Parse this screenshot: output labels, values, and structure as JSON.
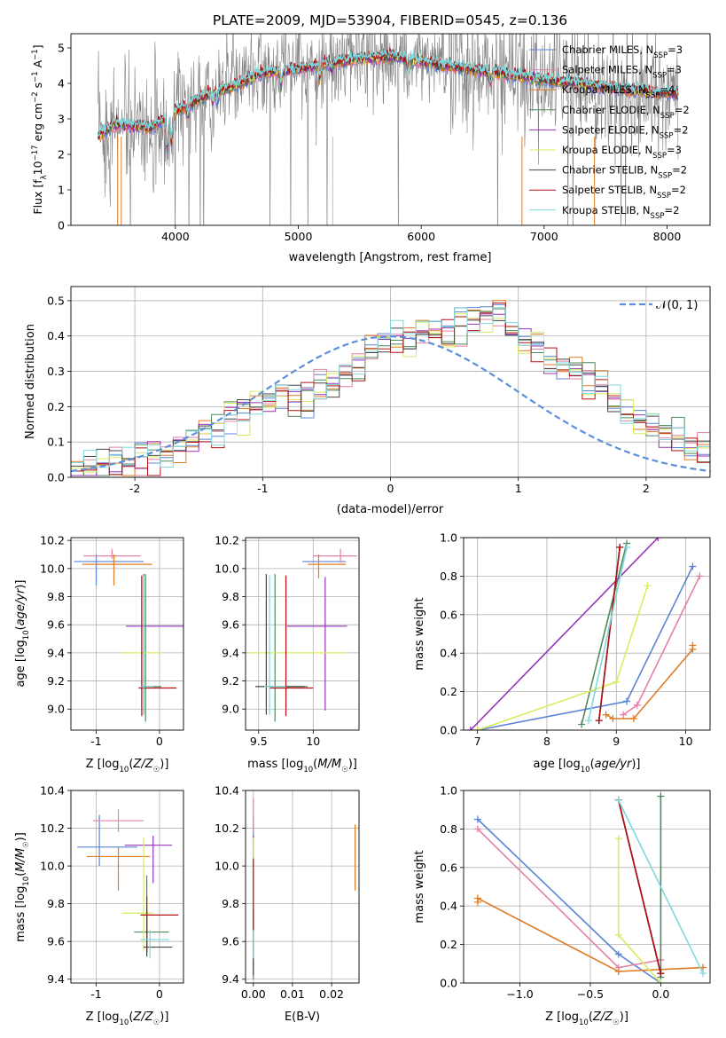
{
  "figure_title": "PLATE=2009, MJD=53904, FIBERID=0545, z=0.136",
  "colors": {
    "Chabrier MILES": "#5b84d6",
    "Salpeter MILES": "#e580a8",
    "Kroupa MILES": "#e07b22",
    "Chabrier ELODIE": "#4f8a5a",
    "Salpeter ELODIE": "#9932b8",
    "Kroupa ELODIE": "#d7ec5e",
    "Chabrier STELIB": "#454545",
    "Salpeter STELIB": "#b21212",
    "Kroupa STELIB": "#7fd8dd",
    "data": "#808080",
    "grid": "#b0b0b0",
    "normal": "#5b8fd9"
  },
  "chart_data": [
    {
      "id": "spectrum",
      "type": "line",
      "xlabel": "wavelength [Angstrom, rest frame]",
      "ylabel": "Flux [f_λ 10^-17 erg cm^-2 s^-1 A^-1]",
      "xlim": [
        3150,
        8350
      ],
      "ylim": [
        0,
        5.4
      ],
      "xticks": [
        4000,
        5000,
        6000,
        7000,
        8000
      ],
      "yticks": [
        0,
        1,
        2,
        3,
        4,
        5
      ],
      "grid": false,
      "legend_position": "top-right",
      "continuum_knots": {
        "x": [
          3370,
          3500,
          3650,
          3800,
          3950,
          4100,
          4300,
          4500,
          4700,
          5000,
          5200,
          5500,
          5800,
          6100,
          6400,
          6700,
          7000,
          7300,
          7600,
          7900,
          8090
        ],
        "y": [
          2.5,
          2.85,
          2.8,
          2.75,
          3.1,
          3.4,
          3.75,
          3.95,
          4.3,
          4.4,
          4.55,
          4.7,
          4.75,
          4.55,
          4.4,
          4.25,
          4.1,
          4.0,
          3.85,
          3.75,
          3.7
        ]
      },
      "series": [
        {
          "name": "Chabrier MILES",
          "nssp": "3"
        },
        {
          "name": "Salpeter MILES",
          "nssp": "3"
        },
        {
          "name": "Kroupa MILES",
          "nssp": "4"
        },
        {
          "name": "Chabrier ELODIE",
          "nssp": "2"
        },
        {
          "name": "Salpeter ELODIE",
          "nssp": "2"
        },
        {
          "name": "Kroupa ELODIE",
          "nssp": "3"
        },
        {
          "name": "Chabrier STELIB",
          "nssp": "2"
        },
        {
          "name": "Salpeter STELIB",
          "nssp": "2"
        },
        {
          "name": "Kroupa STELIB",
          "nssp": "2"
        }
      ]
    },
    {
      "id": "residuals",
      "type": "histogram",
      "xlabel": "(data-model)/error",
      "ylabel": "Normed distribution",
      "xlim": [
        -2.5,
        2.5
      ],
      "ylim": [
        0,
        0.54
      ],
      "xticks": [
        -2,
        -1,
        0,
        1,
        2
      ],
      "yticks": [
        0.0,
        0.1,
        0.2,
        0.3,
        0.4,
        0.5
      ],
      "grid": true,
      "legend": "𝒩(0, 1)",
      "legend_position": "top-right",
      "bin_width": 0.1,
      "template_density": [
        0.02,
        0.025,
        0.03,
        0.04,
        0.05,
        0.06,
        0.065,
        0.07,
        0.085,
        0.1,
        0.12,
        0.14,
        0.17,
        0.185,
        0.2,
        0.21,
        0.24,
        0.22,
        0.23,
        0.25,
        0.27,
        0.3,
        0.32,
        0.36,
        0.37,
        0.38,
        0.4,
        0.42,
        0.43,
        0.41,
        0.44,
        0.46,
        0.47,
        0.45,
        0.42,
        0.38,
        0.36,
        0.33,
        0.32,
        0.29,
        0.27,
        0.25,
        0.22,
        0.19,
        0.16,
        0.14,
        0.12,
        0.1,
        0.085,
        0.075
      ]
    },
    {
      "id": "age-vs-Z",
      "type": "errorbar",
      "xlabel": "Z [log10(Z/Z☉)]",
      "ylabel": "age  [log10(age/yr)]",
      "xlim": [
        -1.4,
        0.38
      ],
      "ylim": [
        8.85,
        10.22
      ],
      "xticks": [
        -1,
        0
      ],
      "yticks": [
        9.0,
        9.2,
        9.4,
        9.6,
        9.8,
        10.0,
        10.2
      ],
      "grid": true,
      "points": [
        {
          "series": "Chabrier MILES",
          "x": -1.0,
          "xerr": [
            0.35,
            0.75
          ],
          "y": 10.05,
          "yerr": [
            0.17,
            0.05
          ]
        },
        {
          "series": "Salpeter MILES",
          "x": -0.75,
          "xerr": [
            0.45,
            0.45
          ],
          "y": 10.09,
          "yerr": [
            0.02,
            0.05
          ]
        },
        {
          "series": "Kroupa MILES",
          "x": -0.72,
          "xerr": [
            0.5,
            0.6
          ],
          "y": 10.03,
          "yerr": [
            0.15,
            0.07
          ]
        },
        {
          "series": "Chabrier ELODIE",
          "x": -0.22,
          "xerr": [
            0.08,
            0.25
          ],
          "y": 9.16,
          "yerr": [
            0.25,
            0.8
          ]
        },
        {
          "series": "Salpeter ELODIE",
          "x": -0.28,
          "xerr": [
            0.25,
            0.7
          ],
          "y": 9.59,
          "yerr": [
            0.6,
            0.35
          ]
        },
        {
          "series": "Kroupa ELODIE",
          "x": -0.28,
          "xerr": [
            0.3,
            0.3
          ],
          "y": 9.4,
          "yerr": [
            0.45,
            0.55
          ]
        },
        {
          "series": "Chabrier STELIB",
          "x": -0.25,
          "xerr": [
            0.05,
            0.1
          ],
          "y": 9.16,
          "yerr": [
            0.2,
            0.8
          ]
        },
        {
          "series": "Salpeter STELIB",
          "x": -0.28,
          "xerr": [
            0.05,
            0.55
          ],
          "y": 9.15,
          "yerr": [
            0.2,
            0.8
          ]
        },
        {
          "series": "Kroupa STELIB",
          "x": -0.25,
          "xerr": [
            0.05,
            0.15
          ],
          "y": 9.16,
          "yerr": [
            0.2,
            0.79
          ]
        }
      ]
    },
    {
      "id": "age-vs-mass",
      "type": "errorbar",
      "xlabel": "mass [log10(M/M☉)]",
      "ylabel": "",
      "xlim": [
        9.38,
        10.42
      ],
      "ylim": [
        8.85,
        10.22
      ],
      "xticks": [
        9.5,
        10.0
      ],
      "yticks": [
        9.0,
        9.2,
        9.4,
        9.6,
        9.8,
        10.0,
        10.2
      ],
      "grid": true,
      "points": [
        {
          "series": "Chabrier MILES",
          "x": 10.15,
          "xerr": [
            0.25,
            0.15
          ],
          "y": 10.05,
          "yerr": [
            0.0,
            0.0
          ]
        },
        {
          "series": "Salpeter MILES",
          "x": 10.25,
          "xerr": [
            0.25,
            0.15
          ],
          "y": 10.09,
          "yerr": [
            0.05,
            0.05
          ]
        },
        {
          "series": "Kroupa MILES",
          "x": 10.05,
          "xerr": [
            0.1,
            0.25
          ],
          "y": 10.03,
          "yerr": [
            0.1,
            0.07
          ]
        },
        {
          "series": "Chabrier ELODIE",
          "x": 9.65,
          "xerr": [
            0.1,
            0.3
          ],
          "y": 9.16,
          "yerr": [
            0.25,
            0.8
          ]
        },
        {
          "series": "Salpeter ELODIE",
          "x": 10.11,
          "xerr": [
            0.35,
            0.2
          ],
          "y": 9.59,
          "yerr": [
            0.6,
            0.35
          ]
        },
        {
          "series": "Kroupa ELODIE",
          "x": 9.75,
          "xerr": [
            0.35,
            0.55
          ],
          "y": 9.4,
          "yerr": [
            0.45,
            0.55
          ]
        },
        {
          "series": "Chabrier STELIB",
          "x": 9.57,
          "xerr": [
            0.1,
            0.35
          ],
          "y": 9.16,
          "yerr": [
            0.2,
            0.8
          ]
        },
        {
          "series": "Salpeter STELIB",
          "x": 9.75,
          "xerr": [
            0.15,
            0.25
          ],
          "y": 9.15,
          "yerr": [
            0.2,
            0.8
          ]
        },
        {
          "series": "Kroupa STELIB",
          "x": 9.6,
          "xerr": [
            0.05,
            0.15
          ],
          "y": 9.16,
          "yerr": [
            0.2,
            0.79
          ]
        }
      ]
    },
    {
      "id": "weight-vs-age",
      "type": "line",
      "xlabel": "age  [log10(age/yr)]",
      "ylabel": "mass weight",
      "xlim": [
        6.8,
        10.35
      ],
      "ylim": [
        0,
        1.0
      ],
      "xticks": [
        7,
        8,
        9,
        10
      ],
      "yticks": [
        0.0,
        0.2,
        0.4,
        0.6,
        0.8,
        1.0
      ],
      "grid": true,
      "series": [
        {
          "name": "Chabrier MILES",
          "x": [
            7.0,
            9.15,
            10.1
          ],
          "y": [
            0.0,
            0.15,
            0.85
          ]
        },
        {
          "name": "Salpeter MILES",
          "x": [
            9.1,
            9.3,
            10.2
          ],
          "y": [
            0.08,
            0.13,
            0.8
          ]
        },
        {
          "name": "Kroupa MILES",
          "x": [
            8.85,
            8.95,
            9.25,
            10.1,
            10.1
          ],
          "y": [
            0.08,
            0.06,
            0.06,
            0.42,
            0.44
          ]
        },
        {
          "name": "Chabrier ELODIE",
          "x": [
            8.5,
            9.15
          ],
          "y": [
            0.03,
            0.97
          ]
        },
        {
          "name": "Salpeter ELODIE",
          "x": [
            6.9,
            9.6
          ],
          "y": [
            0.0,
            1.0
          ]
        },
        {
          "name": "Kroupa ELODIE",
          "x": [
            7.0,
            9.0,
            9.45
          ],
          "y": [
            0.0,
            0.25,
            0.75
          ]
        },
        {
          "name": "Chabrier STELIB",
          "x": [
            8.75,
            9.05
          ],
          "y": [
            0.05,
            0.95
          ]
        },
        {
          "name": "Salpeter STELIB",
          "x": [
            8.75,
            9.05
          ],
          "y": [
            0.05,
            0.95
          ]
        },
        {
          "name": "Kroupa STELIB",
          "x": [
            8.6,
            9.15
          ],
          "y": [
            0.05,
            0.95
          ]
        }
      ]
    },
    {
      "id": "mass-vs-Z",
      "type": "errorbar",
      "xlabel": "Z [log10(Z/Z☉)]",
      "ylabel": "mass [log10(M/M☉)]",
      "xlim": [
        -1.4,
        0.38
      ],
      "ylim": [
        9.38,
        10.4
      ],
      "xticks": [
        -1,
        0
      ],
      "yticks": [
        9.4,
        9.6,
        9.8,
        10.0,
        10.2,
        10.4
      ],
      "grid": true,
      "points": [
        {
          "series": "Chabrier MILES",
          "x": -0.95,
          "xerr": [
            0.35,
            0.6
          ],
          "y": 10.1,
          "yerr": [
            0.1,
            0.17
          ]
        },
        {
          "series": "Salpeter MILES",
          "x": -0.65,
          "xerr": [
            0.4,
            0.4
          ],
          "y": 10.24,
          "yerr": [
            0.06,
            0.06
          ]
        },
        {
          "series": "Kroupa MILES",
          "x": -0.65,
          "xerr": [
            0.5,
            0.5
          ],
          "y": 10.05,
          "yerr": [
            0.18,
            0.05
          ]
        },
        {
          "series": "Chabrier ELODIE",
          "x": -0.2,
          "xerr": [
            0.2,
            0.35
          ],
          "y": 9.65,
          "yerr": [
            0.1,
            0.3
          ]
        },
        {
          "series": "Salpeter ELODIE",
          "x": -0.1,
          "xerr": [
            0.45,
            0.3
          ],
          "y": 10.11,
          "yerr": [
            0.2,
            0.05
          ]
        },
        {
          "series": "Kroupa ELODIE",
          "x": -0.25,
          "xerr": [
            0.35,
            0.15
          ],
          "y": 9.75,
          "yerr": [
            0.2,
            0.4
          ]
        },
        {
          "series": "Chabrier STELIB",
          "x": -0.2,
          "xerr": [
            0.05,
            0.4
          ],
          "y": 9.57,
          "yerr": [
            0.05,
            0.2
          ]
        },
        {
          "series": "Salpeter STELIB",
          "x": -0.2,
          "xerr": [
            0.1,
            0.5
          ],
          "y": 9.74,
          "yerr": [
            0.2,
            0.1
          ]
        },
        {
          "series": "Kroupa STELIB",
          "x": -0.15,
          "xerr": [
            0.15,
            0.3
          ],
          "y": 9.61,
          "yerr": [
            0.1,
            0.05
          ]
        }
      ]
    },
    {
      "id": "mass-vs-ebv",
      "type": "errorbar",
      "xlabel": "E(B-V)",
      "ylabel": "",
      "xlim": [
        -0.002,
        0.027
      ],
      "ylim": [
        9.38,
        10.4
      ],
      "xticks": [
        0.0,
        0.01,
        0.02
      ],
      "xticklabels": [
        "0.00",
        "0.01",
        "0.02"
      ],
      "yticks": [
        9.4,
        9.6,
        9.8,
        10.0,
        10.2,
        10.4
      ],
      "grid": true,
      "points": [
        {
          "series": "Chabrier MILES",
          "x": 0.0,
          "xerr": [
            0,
            0
          ],
          "y": 10.1,
          "yerr": [
            0.1,
            0.17
          ]
        },
        {
          "series": "Salpeter MILES",
          "x": 0.0,
          "xerr": [
            0,
            0
          ],
          "y": 10.24,
          "yerr": [
            0.06,
            0.12
          ]
        },
        {
          "series": "Kroupa MILES",
          "x": 0.026,
          "xerr": [
            0,
            0
          ],
          "y": 10.05,
          "yerr": [
            0.18,
            0.17
          ]
        },
        {
          "series": "Chabrier ELODIE",
          "x": 0.0,
          "xerr": [
            0,
            0
          ],
          "y": 9.65,
          "yerr": [
            0.25,
            0.3
          ]
        },
        {
          "series": "Salpeter ELODIE",
          "x": 0.0,
          "xerr": [
            0,
            0
          ],
          "y": 10.11,
          "yerr": [
            0.2,
            0.05
          ]
        },
        {
          "series": "Kroupa ELODIE",
          "x": 0.0,
          "xerr": [
            0,
            0
          ],
          "y": 9.75,
          "yerr": [
            0.2,
            0.4
          ]
        },
        {
          "series": "Chabrier STELIB",
          "x": 0.0,
          "xerr": [
            0,
            0
          ],
          "y": 9.57,
          "yerr": [
            0.15,
            0.2
          ]
        },
        {
          "series": "Salpeter STELIB",
          "x": 0.0,
          "xerr": [
            0,
            0
          ],
          "y": 9.74,
          "yerr": [
            0.2,
            0.3
          ]
        },
        {
          "series": "Kroupa STELIB",
          "x": 0.0,
          "xerr": [
            0,
            0
          ],
          "y": 9.61,
          "yerr": [
            0.1,
            0.05
          ]
        }
      ]
    },
    {
      "id": "weight-vs-Z",
      "type": "line",
      "xlabel": "Z [log10(Z/Z☉)]",
      "ylabel": "mass weight",
      "xlim": [
        -1.4,
        0.35
      ],
      "ylim": [
        0,
        1.0
      ],
      "xticks": [
        -1.0,
        -0.5,
        0.0
      ],
      "xticklabels": [
        "−1.0",
        "−0.5",
        "0.0"
      ],
      "yticks": [
        0.0,
        0.2,
        0.4,
        0.6,
        0.8,
        1.0
      ],
      "grid": true,
      "series": [
        {
          "name": "Chabrier MILES",
          "x": [
            -1.3,
            -0.3,
            0.0
          ],
          "y": [
            0.85,
            0.15,
            0.0
          ]
        },
        {
          "name": "Salpeter MILES",
          "x": [
            -1.3,
            -0.3,
            0.0
          ],
          "y": [
            0.8,
            0.08,
            0.12
          ]
        },
        {
          "name": "Kroupa MILES",
          "x": [
            -1.3,
            -1.3,
            -0.3,
            0.3
          ],
          "y": [
            0.42,
            0.44,
            0.06,
            0.08
          ]
        },
        {
          "name": "Chabrier ELODIE",
          "x": [
            0.0,
            0.0
          ],
          "y": [
            0.97,
            0.03
          ]
        },
        {
          "name": "Salpeter ELODIE",
          "x": [
            -0.3,
            0.0
          ],
          "y": [
            0.95,
            0.05
          ]
        },
        {
          "name": "Kroupa ELODIE",
          "x": [
            -0.3,
            -0.3,
            0.0
          ],
          "y": [
            0.75,
            0.25,
            0.0
          ]
        },
        {
          "name": "Chabrier STELIB",
          "x": [
            -0.3,
            0.0
          ],
          "y": [
            0.95,
            0.05
          ]
        },
        {
          "name": "Salpeter STELIB",
          "x": [
            -0.3,
            0.0
          ],
          "y": [
            0.95,
            0.05
          ]
        },
        {
          "name": "Kroupa STELIB",
          "x": [
            -0.3,
            0.3
          ],
          "y": [
            0.95,
            0.05
          ]
        }
      ]
    }
  ]
}
